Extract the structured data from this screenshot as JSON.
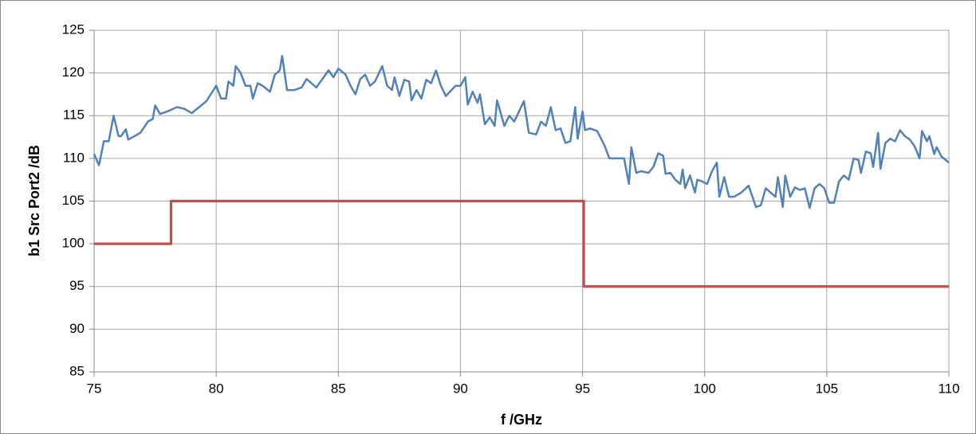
{
  "chart_data": {
    "type": "line",
    "xlabel": "f /GHz",
    "ylabel": "b1 Src Port2 /dB",
    "xlim": [
      75,
      110
    ],
    "xticks": [
      75,
      80,
      85,
      90,
      95,
      100,
      105,
      110
    ],
    "ylim": [
      85,
      125
    ],
    "yticks": [
      85,
      90,
      95,
      100,
      105,
      110,
      115,
      120,
      125
    ],
    "grid": true,
    "series": [
      {
        "color": "#4f81bd",
        "x": [
          75.0,
          75.2,
          75.4,
          75.6,
          75.8,
          76.0,
          76.1,
          76.3,
          76.4,
          76.9,
          77.2,
          77.4,
          77.5,
          77.7,
          78.0,
          78.4,
          78.7,
          79.0,
          79.3,
          79.6,
          80.0,
          80.2,
          80.4,
          80.5,
          80.7,
          80.8,
          81.0,
          81.2,
          81.4,
          81.5,
          81.7,
          81.9,
          82.2,
          82.4,
          82.6,
          82.7,
          82.9,
          83.2,
          83.5,
          83.7,
          84.1,
          84.6,
          84.8,
          85.0,
          85.3,
          85.5,
          85.7,
          85.9,
          86.1,
          86.3,
          86.5,
          86.8,
          87.0,
          87.2,
          87.3,
          87.5,
          87.7,
          87.9,
          88.0,
          88.2,
          88.4,
          88.6,
          88.8,
          89.0,
          89.2,
          89.4,
          89.8,
          90.0,
          90.2,
          90.3,
          90.5,
          90.7,
          90.8,
          91.0,
          91.2,
          91.4,
          91.5,
          91.8,
          92.0,
          92.2,
          92.6,
          92.8,
          93.1,
          93.3,
          93.5,
          93.7,
          93.9,
          94.1,
          94.3,
          94.5,
          94.7,
          94.8,
          95.0,
          95.1,
          95.3,
          95.6,
          95.9,
          96.1,
          96.6,
          96.7,
          96.9,
          97.0,
          97.2,
          97.4,
          97.7,
          97.9,
          98.1,
          98.3,
          98.4,
          98.6,
          98.8,
          99.0,
          99.1,
          99.2,
          99.4,
          99.6,
          99.7,
          99.9,
          100.1,
          100.3,
          100.5,
          100.6,
          100.8,
          101.0,
          101.2,
          101.5,
          101.8,
          102.1,
          102.3,
          102.5,
          102.7,
          102.9,
          103.0,
          103.2,
          103.3,
          103.5,
          103.7,
          103.9,
          104.1,
          104.3,
          104.5,
          104.7,
          104.9,
          105.1,
          105.3,
          105.5,
          105.7,
          105.9,
          106.1,
          106.3,
          106.4,
          106.6,
          106.8,
          106.9,
          107.1,
          107.2,
          107.4,
          107.6,
          107.8,
          108.0,
          108.2,
          108.4,
          108.6,
          108.8,
          108.9,
          109.1,
          109.2,
          109.4,
          109.5,
          109.7,
          110.0
        ],
        "values": [
          110.5,
          109.2,
          112,
          112,
          115,
          112.6,
          112.6,
          113.4,
          112.2,
          113,
          114.3,
          114.6,
          116.2,
          115.2,
          115.5,
          116,
          115.8,
          115.3,
          116,
          116.7,
          118.5,
          117,
          117,
          119,
          118.5,
          120.8,
          120,
          118.5,
          118.5,
          117,
          118.8,
          118.5,
          117.8,
          119.8,
          120.3,
          122,
          118,
          118,
          118.3,
          119.3,
          118.3,
          120.3,
          119.5,
          120.5,
          119.8,
          118.5,
          117.5,
          119.3,
          119.8,
          118.5,
          119,
          120.8,
          118.5,
          118,
          119.5,
          117.3,
          119.2,
          119,
          116.8,
          118,
          117,
          119.2,
          118.8,
          120.3,
          118.5,
          117.3,
          118.5,
          118.5,
          119.5,
          116.3,
          117.8,
          116.5,
          117.5,
          114,
          114.8,
          113.8,
          116.8,
          113.8,
          115,
          114.3,
          116.7,
          113,
          112.8,
          114.3,
          113.8,
          116,
          113.3,
          113.5,
          111.8,
          112,
          116,
          112.3,
          115.5,
          113.3,
          113.5,
          113.2,
          111.5,
          110,
          110,
          110,
          107,
          111.3,
          108.3,
          108.5,
          108.3,
          109,
          110.6,
          110.3,
          108.2,
          108.3,
          107.5,
          107,
          108.7,
          106.5,
          108,
          106,
          107.5,
          107.3,
          107,
          108.5,
          109.5,
          105.5,
          107.8,
          105.5,
          105.5,
          106,
          106.8,
          104.3,
          104.5,
          106.5,
          106,
          105.5,
          107.8,
          104.3,
          108,
          105.5,
          106.6,
          106.3,
          106.5,
          104.2,
          106.5,
          107,
          106.5,
          104.8,
          104.8,
          107.3,
          108,
          107.5,
          110,
          109.8,
          108.3,
          110.8,
          110.6,
          109,
          113,
          108.8,
          111.8,
          112.3,
          112,
          113.3,
          112.6,
          112.2,
          111.4,
          110,
          113.2,
          112,
          112.6,
          110.5,
          111.3,
          110.2,
          109.5
        ]
      },
      {
        "color": "#c0504d",
        "x": [
          75,
          78.15,
          78.15,
          95.05,
          95.05,
          110
        ],
        "values": [
          100,
          100,
          105,
          105,
          95,
          95
        ]
      }
    ]
  }
}
